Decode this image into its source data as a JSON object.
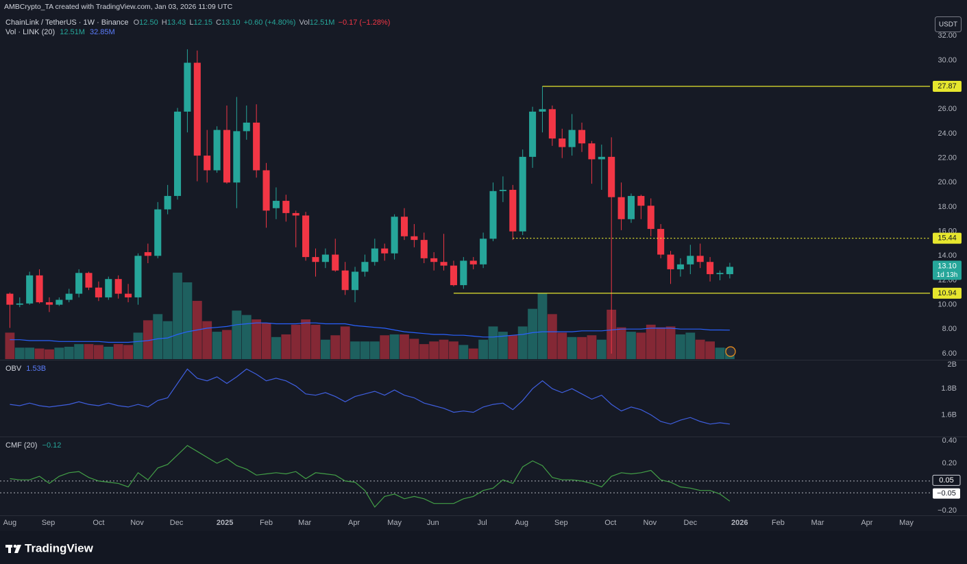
{
  "header": {
    "credit": "AMBCrypto_TA created with TradingView.com, Jan 03, 2026 11:09 UTC",
    "symbol": "ChainLink / TetherUS · 1W · Binance",
    "ohlc": [
      {
        "label": "O",
        "value": "12.50"
      },
      {
        "label": "H",
        "value": "13.43"
      },
      {
        "label": "L",
        "value": "12.15"
      },
      {
        "label": "C",
        "value": "13.10"
      }
    ],
    "change": "+0.60 (+4.80%)",
    "vol_label": "Vol",
    "vol_value": "12.51M",
    "vol_change": "−0.17 (−1.28%)",
    "currency": "USDT",
    "brand": "TradingView"
  },
  "chart_data": [
    {
      "type": "candlestick",
      "up_color": "#26a69a",
      "down_color": "#f23645",
      "x": [
        0,
        1,
        2,
        3,
        4,
        5,
        6,
        7,
        8,
        9,
        10,
        11,
        12,
        13,
        14,
        15,
        16,
        17,
        18,
        19,
        20,
        21,
        22,
        23,
        24,
        25,
        26,
        27,
        28,
        29,
        30,
        31,
        32,
        33,
        34,
        35,
        36,
        37,
        38,
        39,
        40,
        41,
        42,
        43,
        44,
        45,
        46,
        47,
        48,
        49,
        50,
        51,
        52,
        53,
        54,
        55,
        56,
        57,
        58,
        59,
        60,
        61,
        62,
        63,
        64,
        65,
        66,
        67,
        68,
        69,
        70,
        71,
        72,
        73
      ],
      "open": [
        10.9,
        10.0,
        10.1,
        12.4,
        10.2,
        10.0,
        10.4,
        10.9,
        12.6,
        11.4,
        10.6,
        12.1,
        10.9,
        10.6,
        14.3,
        14.0,
        17.8,
        18.9,
        25.8,
        29.8,
        22.2,
        21.0,
        24.3,
        20.0,
        24.2,
        24.9,
        21.0,
        17.9,
        18.5,
        17.5,
        17.3,
        13.9,
        13.5,
        14.1,
        12.8,
        11.2,
        12.7,
        13.5,
        14.6,
        14.2,
        17.2,
        15.6,
        15.3,
        13.8,
        13.5,
        13.2,
        11.6,
        13.6,
        13.3,
        15.4,
        19.3,
        19.4,
        16.0,
        22.1,
        25.8,
        26.0,
        23.6,
        22.9,
        24.3,
        23.2,
        21.9,
        22.1,
        18.8,
        17.0,
        18.9,
        18.1,
        16.2,
        14.1,
        12.9,
        13.3,
        14.0,
        13.5,
        12.5,
        12.5
      ],
      "high": [
        11.0,
        10.6,
        12.7,
        12.9,
        10.6,
        10.6,
        11.3,
        12.9,
        12.7,
        11.9,
        12.3,
        12.4,
        11.7,
        14.2,
        15.0,
        18.4,
        19.8,
        26.1,
        30.9,
        30.8,
        24.3,
        24.6,
        26.3,
        27.0,
        26.3,
        26.4,
        21.6,
        19.6,
        19.0,
        17.7,
        17.6,
        14.6,
        14.6,
        15.4,
        13.5,
        13.1,
        14.1,
        15.4,
        15.0,
        17.4,
        17.9,
        16.6,
        15.9,
        14.3,
        15.8,
        13.6,
        13.9,
        13.9,
        15.9,
        20.0,
        20.5,
        19.8,
        22.7,
        26.2,
        27.87,
        26.3,
        24.4,
        25.6,
        24.9,
        23.4,
        23.1,
        23.7,
        20.0,
        19.1,
        19.0,
        18.7,
        16.6,
        14.4,
        13.8,
        14.9,
        15.0,
        13.9,
        12.8,
        13.43
      ],
      "low": [
        8.1,
        9.8,
        10.0,
        10.1,
        9.4,
        9.9,
        10.2,
        10.6,
        11.2,
        10.3,
        10.4,
        10.5,
        10.2,
        10.0,
        13.4,
        13.8,
        17.4,
        18.6,
        24.1,
        20.1,
        20.0,
        20.8,
        19.9,
        17.9,
        23.5,
        20.4,
        16.3,
        17.0,
        16.8,
        14.7,
        13.6,
        12.3,
        13.0,
        12.7,
        10.8,
        10.2,
        12.3,
        13.2,
        13.6,
        13.7,
        15.3,
        14.7,
        13.4,
        12.8,
        12.8,
        11.5,
        11.3,
        12.9,
        13.0,
        15.2,
        18.4,
        15.3,
        15.7,
        21.2,
        24.1,
        23.0,
        22.0,
        22.2,
        22.5,
        19.9,
        19.4,
        6.0,
        16.1,
        16.7,
        17.0,
        15.6,
        13.8,
        11.7,
        12.3,
        12.5,
        13.0,
        11.9,
        12.0,
        12.15
      ],
      "close": [
        10.0,
        10.1,
        12.4,
        10.2,
        10.0,
        10.4,
        10.9,
        12.6,
        11.4,
        10.6,
        12.1,
        10.9,
        10.6,
        14.0,
        14.0,
        17.8,
        18.9,
        25.8,
        29.8,
        22.2,
        21.0,
        24.3,
        20.0,
        24.2,
        24.9,
        21.0,
        17.7,
        18.5,
        17.5,
        17.3,
        13.9,
        13.5,
        14.1,
        12.8,
        11.2,
        12.7,
        13.5,
        14.6,
        14.2,
        17.2,
        15.6,
        15.3,
        13.8,
        13.5,
        13.2,
        11.6,
        13.6,
        13.3,
        15.4,
        19.3,
        19.4,
        16.0,
        22.1,
        25.8,
        26.0,
        23.6,
        22.9,
        24.3,
        23.2,
        21.9,
        22.1,
        18.8,
        17.0,
        18.9,
        18.1,
        16.2,
        14.1,
        12.9,
        13.3,
        14.0,
        13.5,
        12.5,
        12.6,
        13.1
      ],
      "xlim": [
        -1,
        93.3
      ],
      "xticks": [
        {
          "value": 0,
          "label": "Aug"
        },
        {
          "value": 3.9,
          "label": "Sep"
        },
        {
          "value": 9,
          "label": "Oct"
        },
        {
          "value": 12.9,
          "label": "Nov"
        },
        {
          "value": 16.9,
          "label": "Dec"
        },
        {
          "value": 21.8,
          "label": "2025"
        },
        {
          "value": 26,
          "label": "Feb"
        },
        {
          "value": 29.9,
          "label": "Mar"
        },
        {
          "value": 34.9,
          "label": "Apr"
        },
        {
          "value": 39,
          "label": "May"
        },
        {
          "value": 42.9,
          "label": "Jun"
        },
        {
          "value": 47.9,
          "label": "Jul"
        },
        {
          "value": 51.9,
          "label": "Aug"
        },
        {
          "value": 55.9,
          "label": "Sep"
        },
        {
          "value": 60.9,
          "label": "Oct"
        },
        {
          "value": 64.9,
          "label": "Nov"
        },
        {
          "value": 69,
          "label": "Dec"
        },
        {
          "value": 74,
          "label": "2026"
        },
        {
          "value": 77.9,
          "label": "Feb"
        },
        {
          "value": 81.9,
          "label": "Mar"
        },
        {
          "value": 86.9,
          "label": "Apr"
        },
        {
          "value": 90.9,
          "label": "May"
        }
      ],
      "ylim": [
        5.55,
        33.7
      ],
      "yticks": [
        {
          "value": 6,
          "label": "6.00"
        },
        {
          "value": 8,
          "label": "8.00"
        },
        {
          "value": 10,
          "label": "10.00"
        },
        {
          "value": 12,
          "label": "12.00"
        },
        {
          "value": 14,
          "label": "14.00"
        },
        {
          "value": 16,
          "label": "16.00"
        },
        {
          "value": 18,
          "label": "18.00"
        },
        {
          "value": 20,
          "label": "20.00"
        },
        {
          "value": 22,
          "label": "22.00"
        },
        {
          "value": 24,
          "label": "24.00"
        },
        {
          "value": 26,
          "label": "26.00"
        },
        {
          "value": 28,
          "label": "28.00"
        },
        {
          "value": 30,
          "label": "30.00"
        },
        {
          "value": 32,
          "label": "32.00"
        }
      ],
      "grid": false,
      "level_color": "#e6e62e",
      "levels": [
        {
          "value": 27.87,
          "label": "27.87",
          "from": 54,
          "style": "solid"
        },
        {
          "value": 15.44,
          "label": "15.44",
          "from": 51,
          "style": "dotted"
        },
        {
          "value": 10.94,
          "label": "10.94",
          "from": 45,
          "style": "solid"
        }
      ],
      "last_label": "13.10",
      "countdown": "1d 13h"
    },
    {
      "type": "bar",
      "title": "Vol · LINK (20)",
      "value_label": "12.51M",
      "ma_label": "32.85M",
      "up_color": "rgba(38,166,154,0.5)",
      "down_color": "rgba(242,54,69,0.5)",
      "values": [
        30,
        13,
        13,
        12,
        11,
        13,
        14,
        17,
        17,
        16,
        14,
        17,
        16,
        30,
        44,
        51,
        43,
        98,
        87,
        66,
        43,
        31,
        33,
        55,
        50,
        45,
        41,
        25,
        28,
        39,
        45,
        39,
        22,
        27,
        37,
        20,
        20,
        20,
        27,
        28,
        28,
        23,
        17,
        20,
        22,
        20,
        16,
        12,
        22,
        37,
        31,
        27,
        37,
        57,
        75,
        51,
        30,
        25,
        25,
        27,
        22,
        56,
        36,
        31,
        30,
        39,
        36,
        37,
        28,
        30,
        22,
        20,
        13,
        12.51
      ],
      "ma": {
        "color": "#2962ff",
        "values": [
          22,
          22,
          21,
          21,
          21,
          20,
          20,
          20,
          20,
          20,
          19,
          19,
          19,
          20,
          21,
          23,
          24,
          28,
          31,
          33,
          35,
          36,
          37,
          39,
          40,
          41,
          41,
          40,
          40,
          40,
          41,
          41,
          40,
          40,
          40,
          38,
          37,
          36,
          35,
          33,
          31,
          30,
          29,
          28,
          28,
          27,
          27,
          26,
          25,
          25,
          26,
          27,
          28,
          30,
          31,
          31,
          31,
          31,
          32,
          32,
          32,
          33,
          34,
          34,
          34,
          35,
          35,
          35,
          34,
          34,
          34,
          33,
          33,
          32.85
        ]
      },
      "ylim": [
        0,
        390
      ]
    },
    {
      "type": "line",
      "title": "OBV",
      "value_label": "1.53B",
      "color": "#3f5fe0",
      "values": [
        1.68,
        1.67,
        1.69,
        1.67,
        1.66,
        1.67,
        1.68,
        1.7,
        1.68,
        1.67,
        1.69,
        1.67,
        1.66,
        1.68,
        1.66,
        1.71,
        1.73,
        1.84,
        1.95,
        1.88,
        1.86,
        1.89,
        1.84,
        1.89,
        1.95,
        1.91,
        1.86,
        1.88,
        1.86,
        1.82,
        1.76,
        1.75,
        1.77,
        1.74,
        1.7,
        1.74,
        1.76,
        1.78,
        1.75,
        1.79,
        1.75,
        1.73,
        1.69,
        1.67,
        1.65,
        1.62,
        1.63,
        1.62,
        1.66,
        1.68,
        1.69,
        1.64,
        1.71,
        1.8,
        1.86,
        1.8,
        1.77,
        1.8,
        1.76,
        1.72,
        1.75,
        1.68,
        1.63,
        1.66,
        1.64,
        1.6,
        1.55,
        1.53,
        1.56,
        1.58,
        1.55,
        1.53,
        1.54,
        1.53
      ],
      "ylim": [
        1.44,
        2.01
      ],
      "yticks": [
        {
          "value": 1.6,
          "label": "1.6B"
        },
        {
          "value": 1.8,
          "label": "1.8B"
        },
        {
          "value": 2,
          "label": "2B"
        }
      ]
    },
    {
      "type": "line",
      "title": "CMF (20)",
      "value_label": "−0.12",
      "color": "#43a047",
      "values": [
        0.07,
        0.06,
        0.06,
        0.09,
        0.03,
        0.09,
        0.12,
        0.13,
        0.08,
        0.05,
        0.04,
        0.03,
        0.0,
        0.12,
        0.06,
        0.16,
        0.19,
        0.27,
        0.35,
        0.3,
        0.25,
        0.2,
        0.24,
        0.18,
        0.15,
        0.1,
        0.11,
        0.12,
        0.11,
        0.13,
        0.07,
        0.12,
        0.11,
        0.1,
        0.05,
        0.04,
        -0.03,
        -0.17,
        -0.08,
        -0.06,
        -0.1,
        -0.08,
        -0.1,
        -0.14,
        -0.14,
        -0.14,
        -0.1,
        -0.08,
        -0.03,
        -0.01,
        0.06,
        0.03,
        0.17,
        0.22,
        0.18,
        0.08,
        0.06,
        0.06,
        0.05,
        0.03,
        0.0,
        0.09,
        0.12,
        0.11,
        0.12,
        0.14,
        0.06,
        0.04,
        0.0,
        -0.01,
        -0.03,
        -0.03,
        -0.06,
        -0.12
      ],
      "ylim": [
        -0.24,
        0.42
      ],
      "yticks": [
        {
          "value": 0.4,
          "label": "0.40"
        },
        {
          "value": 0.2,
          "label": "0.20"
        },
        {
          "value": -0.2,
          "label": "−0.20"
        }
      ],
      "levels": [
        {
          "value": 0.05,
          "label": "0.05"
        },
        {
          "value": -0.05,
          "label": "−0.05"
        }
      ]
    }
  ]
}
